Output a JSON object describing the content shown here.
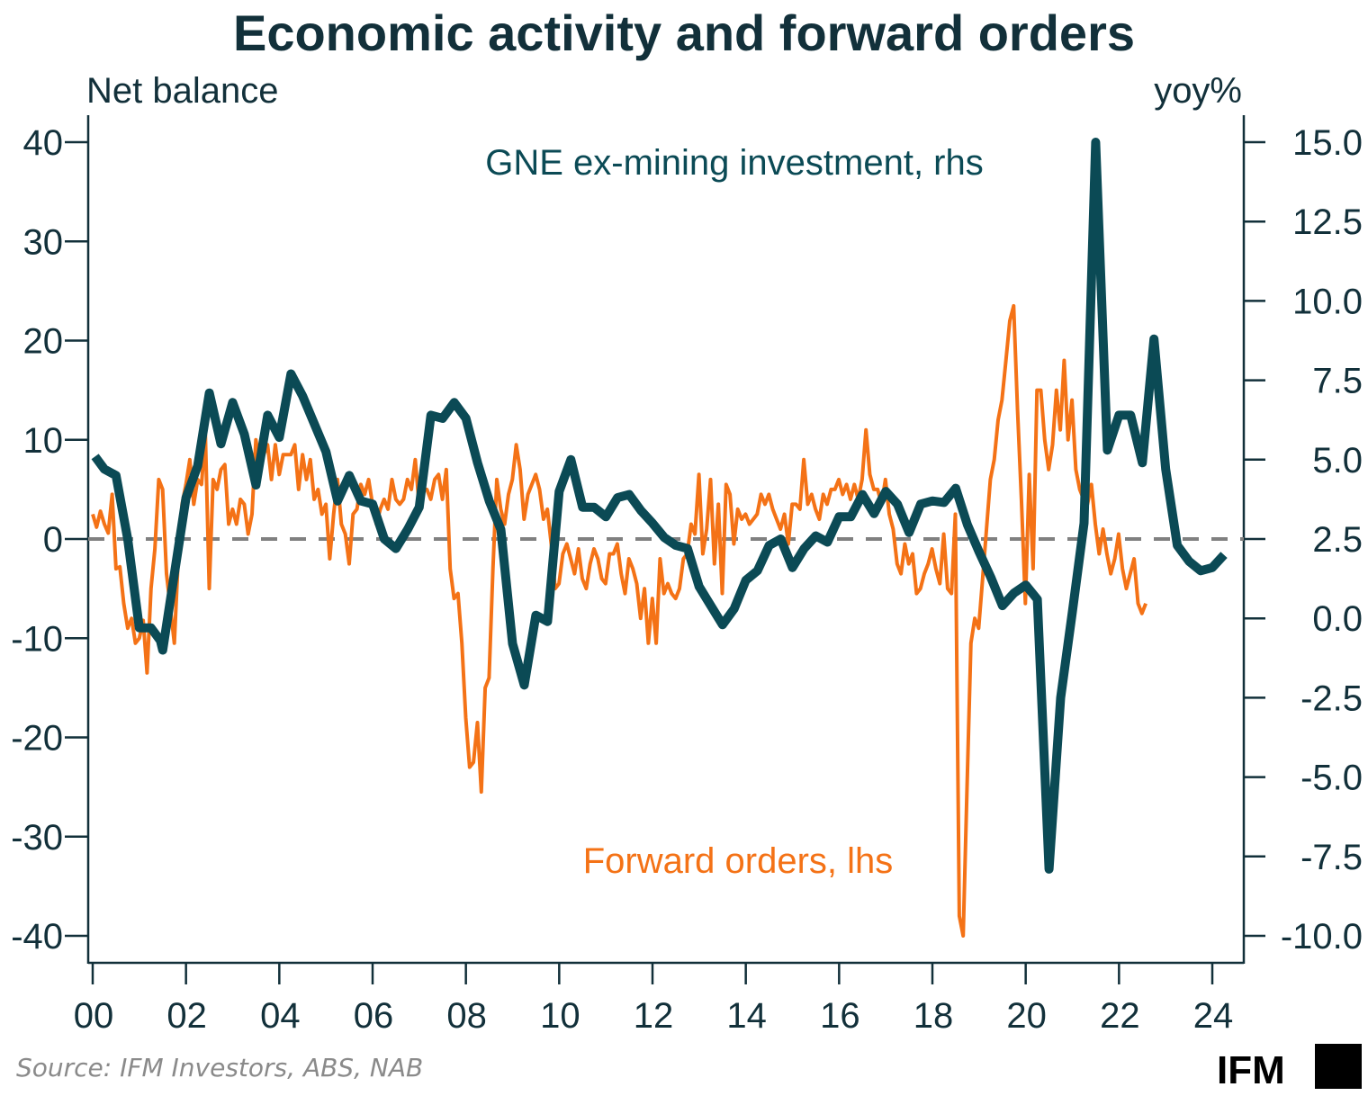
{
  "chart_data": {
    "type": "line",
    "title": "Economic activity and forward orders",
    "ylabel_left": "Net balance",
    "ylabel_right": "yoy%",
    "xlabel": "",
    "ylim_left": [
      -40,
      40
    ],
    "ylim_right": [
      -10,
      15
    ],
    "xlim": [
      2000,
      2024.6
    ],
    "x_ticks": [
      "00",
      "02",
      "04",
      "06",
      "08",
      "10",
      "12",
      "14",
      "16",
      "18",
      "20",
      "22",
      "24"
    ],
    "x_tick_years": [
      2000,
      2002,
      2004,
      2006,
      2008,
      2010,
      2012,
      2014,
      2016,
      2018,
      2020,
      2022,
      2024
    ],
    "y_ticks_left": [
      "40",
      "30",
      "20",
      "10",
      "0",
      "-10",
      "-20",
      "-30",
      "-40"
    ],
    "y_tick_values_left": [
      40,
      30,
      20,
      10,
      0,
      -10,
      -20,
      -30,
      -40
    ],
    "y_ticks_right": [
      "15.0",
      "12.5",
      "10.0",
      "7.5",
      "5.0",
      "2.5",
      "0.0",
      "-2.5",
      "-5.0",
      "-7.5",
      "-10.0"
    ],
    "y_tick_values_right": [
      15,
      12.5,
      10,
      7.5,
      5,
      2.5,
      0,
      -2.5,
      -5,
      -7.5,
      -10
    ],
    "reference_line": {
      "axis": "left",
      "value": 0,
      "style": "dashed",
      "color": "#808080"
    },
    "grid": false,
    "legend": "inline annotations",
    "annotations": [
      {
        "text": "GNE ex-mining investment, rhs",
        "series": "gne",
        "position": "top-center"
      },
      {
        "text": "Forward orders, lhs",
        "series": "forward_orders",
        "position": "bottom-center"
      }
    ],
    "series": [
      {
        "id": "gne",
        "name": "GNE ex-mining investment, rhs",
        "axis": "right",
        "color": "#0b4a55",
        "frequency": "quarterly",
        "x": [
          2000.05,
          2000.25,
          2000.5,
          2000.75,
          2001.0,
          2001.25,
          2001.45,
          2001.5,
          2002.0,
          2002.25,
          2002.5,
          2002.75,
          2003.0,
          2003.25,
          2003.5,
          2003.75,
          2004.0,
          2004.25,
          2004.5,
          2005.0,
          2005.25,
          2005.5,
          2005.75,
          2006.0,
          2006.25,
          2006.5,
          2006.75,
          2007.0,
          2007.25,
          2007.5,
          2007.75,
          2008.0,
          2008.25,
          2008.5,
          2008.75,
          2009.0,
          2009.25,
          2009.5,
          2009.75,
          2010.0,
          2010.25,
          2010.5,
          2010.75,
          2011.0,
          2011.25,
          2011.5,
          2011.75,
          2012.0,
          2012.25,
          2012.5,
          2012.75,
          2013.0,
          2013.25,
          2013.5,
          2013.75,
          2014.0,
          2014.25,
          2014.5,
          2014.75,
          2015.0,
          2015.25,
          2015.5,
          2015.75,
          2016.0,
          2016.25,
          2016.5,
          2016.75,
          2017.0,
          2017.25,
          2017.5,
          2017.75,
          2018.0,
          2018.25,
          2018.5,
          2018.75,
          2019.0,
          2019.25,
          2019.5,
          2019.75,
          2020.0,
          2020.25,
          2020.5,
          2020.75,
          2021.0,
          2021.25,
          2021.5,
          2021.75,
          2022.0,
          2022.25,
          2022.5,
          2022.75,
          2023.0,
          2023.25,
          2023.5,
          2023.75,
          2024.0,
          2024.25
        ],
        "values": [
          5.1,
          4.7,
          4.5,
          2.5,
          -0.3,
          -0.3,
          -0.7,
          -1.0,
          3.8,
          4.8,
          7.1,
          5.5,
          6.8,
          5.8,
          4.2,
          6.4,
          5.7,
          7.7,
          7.0,
          5.25,
          3.7,
          4.5,
          3.7,
          3.6,
          2.5,
          2.2,
          2.8,
          3.5,
          6.4,
          6.3,
          6.8,
          6.3,
          4.9,
          3.7,
          2.8,
          -0.8,
          -2.1,
          0.1,
          -0.1,
          4.0,
          5.0,
          3.5,
          3.5,
          3.2,
          3.8,
          3.9,
          3.4,
          3.0,
          2.55,
          2.3,
          2.2,
          1.0,
          0.4,
          -0.2,
          0.3,
          1.2,
          1.5,
          2.3,
          2.5,
          1.6,
          2.2,
          2.6,
          2.4,
          3.2,
          3.2,
          3.9,
          3.3,
          4.0,
          3.6,
          2.7,
          3.6,
          3.7,
          3.65,
          4.1,
          2.95,
          2.1,
          1.3,
          0.4,
          0.8,
          1.05,
          0.6,
          -7.9,
          -2.5,
          0.2,
          3.0,
          15.0,
          5.3,
          6.4,
          6.4,
          4.9,
          8.8,
          4.7,
          2.3,
          1.8,
          1.5,
          1.6,
          2.0
        ]
      },
      {
        "id": "forward_orders",
        "name": "Forward orders, lhs",
        "axis": "left",
        "color": "#f47216",
        "frequency": "monthly",
        "x_start": 2000.0,
        "x_step": 0.0833,
        "values": [
          2.5,
          1.2,
          2.8,
          1.5,
          0.6,
          4.5,
          -3.0,
          -2.8,
          -6.5,
          -9.0,
          -8.0,
          -10.5,
          -10.0,
          -8.2,
          -13.5,
          -5.0,
          -1.0,
          6.0,
          5.0,
          -3.5,
          -7.0,
          -10.5,
          -2.0,
          3.5,
          5.5,
          8.0,
          3.5,
          6.0,
          5.5,
          10.5,
          -5.0,
          6.0,
          5.0,
          7.0,
          7.5,
          1.5,
          3.0,
          1.5,
          4.0,
          3.5,
          0.5,
          2.5,
          10.0,
          7.5,
          8.5,
          9.5,
          6.0,
          9.5,
          6.5,
          8.5,
          8.5,
          8.5,
          9.5,
          5.0,
          8.5,
          6.0,
          8.0,
          4.0,
          5.0,
          2.5,
          3.5,
          -2.0,
          2.5,
          6.0,
          1.5,
          0.5,
          -2.5,
          2.5,
          3.0,
          5.5,
          4.5,
          6.0,
          3.5,
          1.5,
          3.0,
          4.0,
          3.0,
          6.0,
          4.0,
          3.5,
          4.0,
          6.0,
          5.0,
          8.0,
          3.5,
          5.0,
          5.0,
          4.0,
          6.0,
          6.5,
          4.0,
          7.0,
          -3.0,
          -6.0,
          -5.5,
          -10.5,
          -18.0,
          -23.0,
          -22.5,
          -18.5,
          -25.5,
          -15.0,
          -14.0,
          -3.0,
          6.0,
          3.0,
          1.5,
          4.5,
          6.0,
          9.5,
          7.0,
          2.0,
          4.5,
          5.5,
          6.5,
          5.0,
          2.0,
          3.0,
          -0.5,
          -5.0,
          -4.5,
          -1.5,
          -0.5,
          -2.0,
          -3.5,
          -1.0,
          -4.0,
          -5.0,
          -2.5,
          -1.0,
          -2.0,
          -4.0,
          -4.5,
          -1.5,
          -1.5,
          -0.5,
          -3.5,
          -5.5,
          -2.0,
          -3.0,
          -4.5,
          -8.0,
          -5.0,
          -10.5,
          -6.0,
          -10.5,
          -2.0,
          -5.5,
          -4.5,
          -5.5,
          -6.0,
          -5.0,
          -2.0,
          -1.5,
          1.5,
          0.5,
          6.5,
          -1.5,
          1.0,
          6.0,
          -2.5,
          3.5,
          -5.5,
          5.5,
          4.5,
          -0.5,
          3.0,
          2.0,
          2.5,
          1.5,
          2.0,
          2.5,
          4.5,
          3.5,
          4.5,
          3.0,
          2.0,
          1.0,
          2.5,
          -0.5,
          3.5,
          3.5,
          3.0,
          8.0,
          3.5,
          4.5,
          3.0,
          2.0,
          4.5,
          3.5,
          5.0,
          5.0,
          6.0,
          4.5,
          5.5,
          4.0,
          5.5,
          4.0,
          6.0,
          11.0,
          6.5,
          5.0,
          5.0,
          3.5,
          6.0,
          2.5,
          1.0,
          -2.5,
          -3.5,
          -0.5,
          -2.5,
          -1.5,
          -5.5,
          -5.0,
          -3.5,
          -2.5,
          -1.0,
          -3.0,
          -4.5,
          0.5,
          -5.0,
          -5.5,
          2.5,
          -38.0,
          -40.0,
          -25.0,
          -10.5,
          -8.0,
          -9.0,
          -4.0,
          1.0,
          6.0,
          8.0,
          12.0,
          14.0,
          18.0,
          22.0,
          23.5,
          13.0,
          4.0,
          -6.5,
          6.5,
          -3.0,
          15.0,
          15.0,
          10.0,
          7.0,
          9.5,
          15.0,
          11.0,
          18.0,
          10.0,
          14.0,
          7.0,
          5.0,
          4.0,
          3.5,
          5.5,
          1.5,
          -1.5,
          1.0,
          -1.5,
          -3.5,
          -2.0,
          0.5,
          -3.0,
          -5.0,
          -3.5,
          -2.0,
          -6.5,
          -7.5,
          -6.5
        ]
      }
    ],
    "source": "Source: IFM Investors, ABS, NAB",
    "brand": "IFM"
  }
}
